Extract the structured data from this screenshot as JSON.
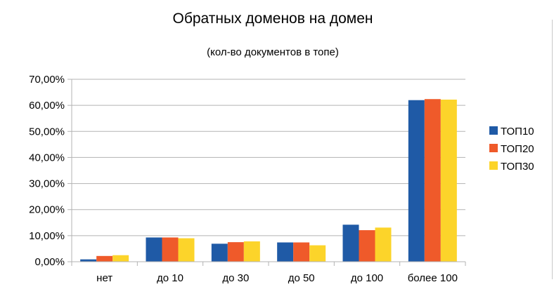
{
  "chart_data": {
    "type": "bar",
    "title": "Обратных доменов на домен",
    "subtitle": "(кол-во документов в топе)",
    "xlabel": "",
    "ylabel": "",
    "categories": [
      "нет",
      "до 10",
      "до 30",
      "до 50",
      "до 100",
      "более 100"
    ],
    "series": [
      {
        "name": "ТОП10",
        "color": "#1f5aa6",
        "values": [
          0.9,
          9.3,
          6.9,
          7.4,
          14.2,
          62.0
        ]
      },
      {
        "name": "ТОП20",
        "color": "#ef5a2a",
        "values": [
          2.2,
          9.3,
          7.5,
          7.4,
          12.1,
          62.4
        ]
      },
      {
        "name": "ТОП30",
        "color": "#fcd42a",
        "values": [
          2.5,
          9.0,
          7.8,
          6.3,
          13.1,
          62.2
        ]
      }
    ],
    "y_ticks": [
      "0,00%",
      "10,00%",
      "20,00%",
      "30,00%",
      "40,00%",
      "50,00%",
      "60,00%",
      "70,00%"
    ],
    "ylim": [
      0,
      70
    ],
    "y_unit": "%",
    "grid": true,
    "legend_position": "right"
  }
}
